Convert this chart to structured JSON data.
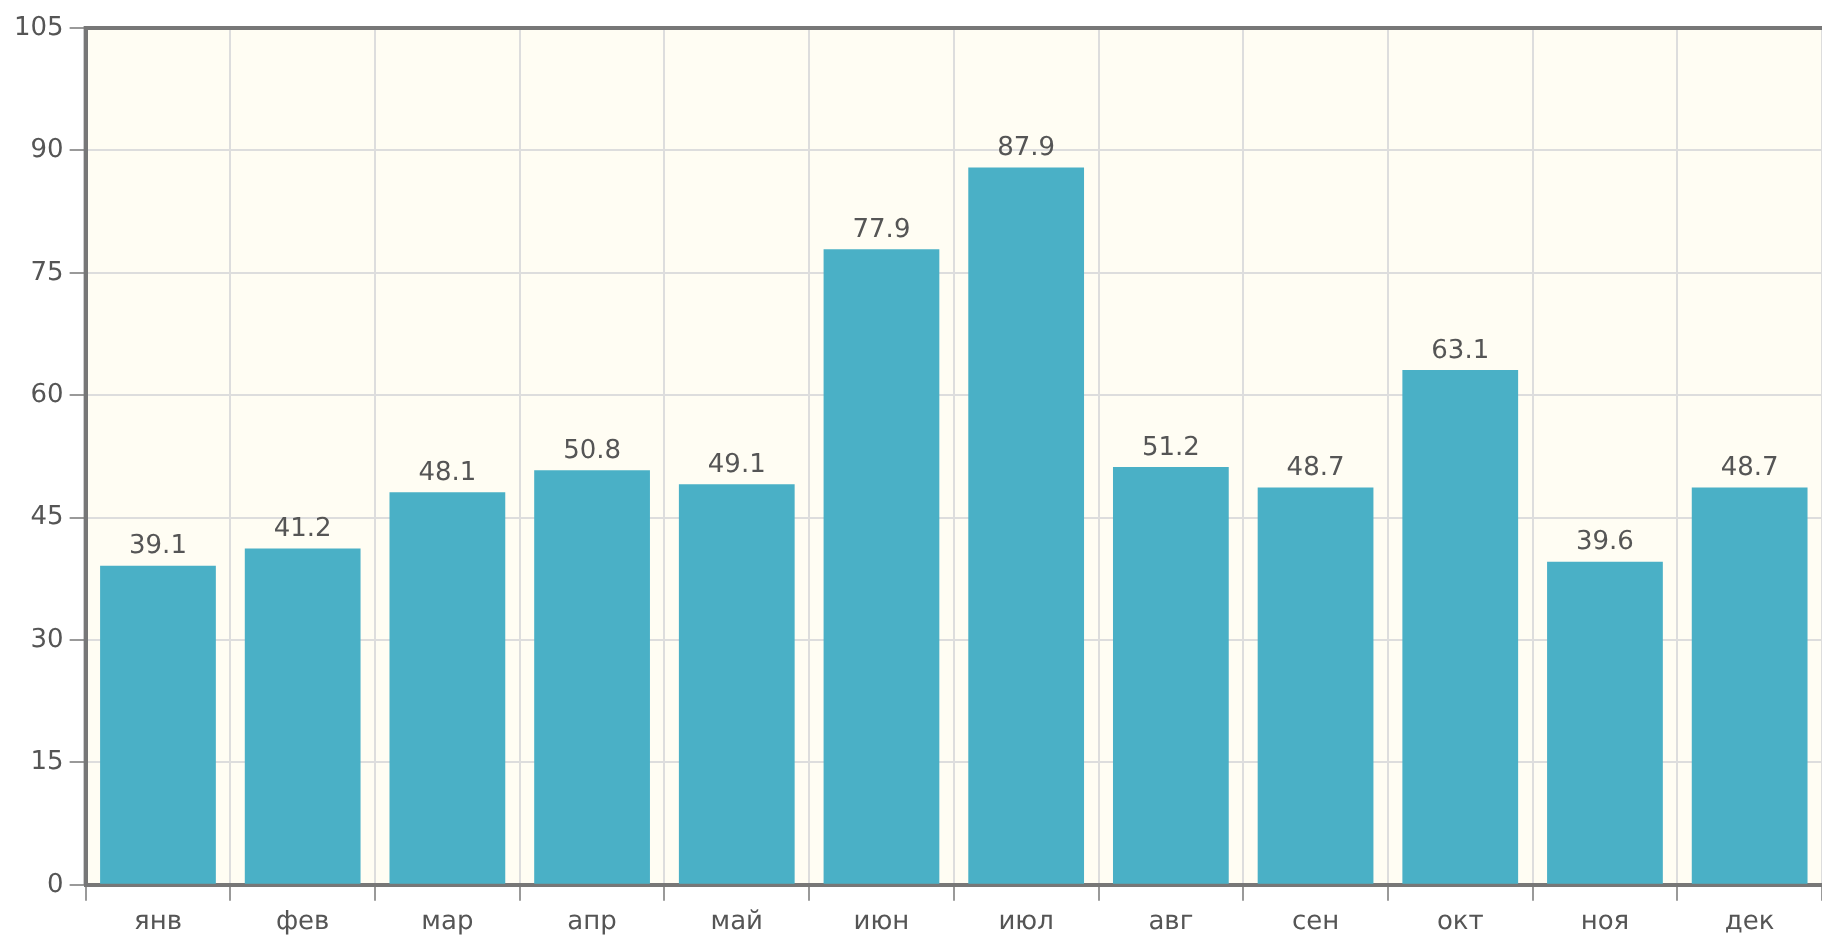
{
  "chart_data": {
    "type": "bar",
    "categories": [
      "янв",
      "фев",
      "мар",
      "апр",
      "май",
      "июн",
      "июл",
      "авг",
      "сен",
      "окт",
      "ноя",
      "дек"
    ],
    "values": [
      39.1,
      41.2,
      48.1,
      50.8,
      49.1,
      77.9,
      87.9,
      51.2,
      48.7,
      63.1,
      39.6,
      48.7
    ],
    "color": "#4ab0c6",
    "ylim": [
      0,
      105
    ],
    "yticks": [
      0,
      15,
      30,
      45,
      60,
      75,
      90,
      105
    ],
    "grid": true,
    "data_labels": true
  }
}
